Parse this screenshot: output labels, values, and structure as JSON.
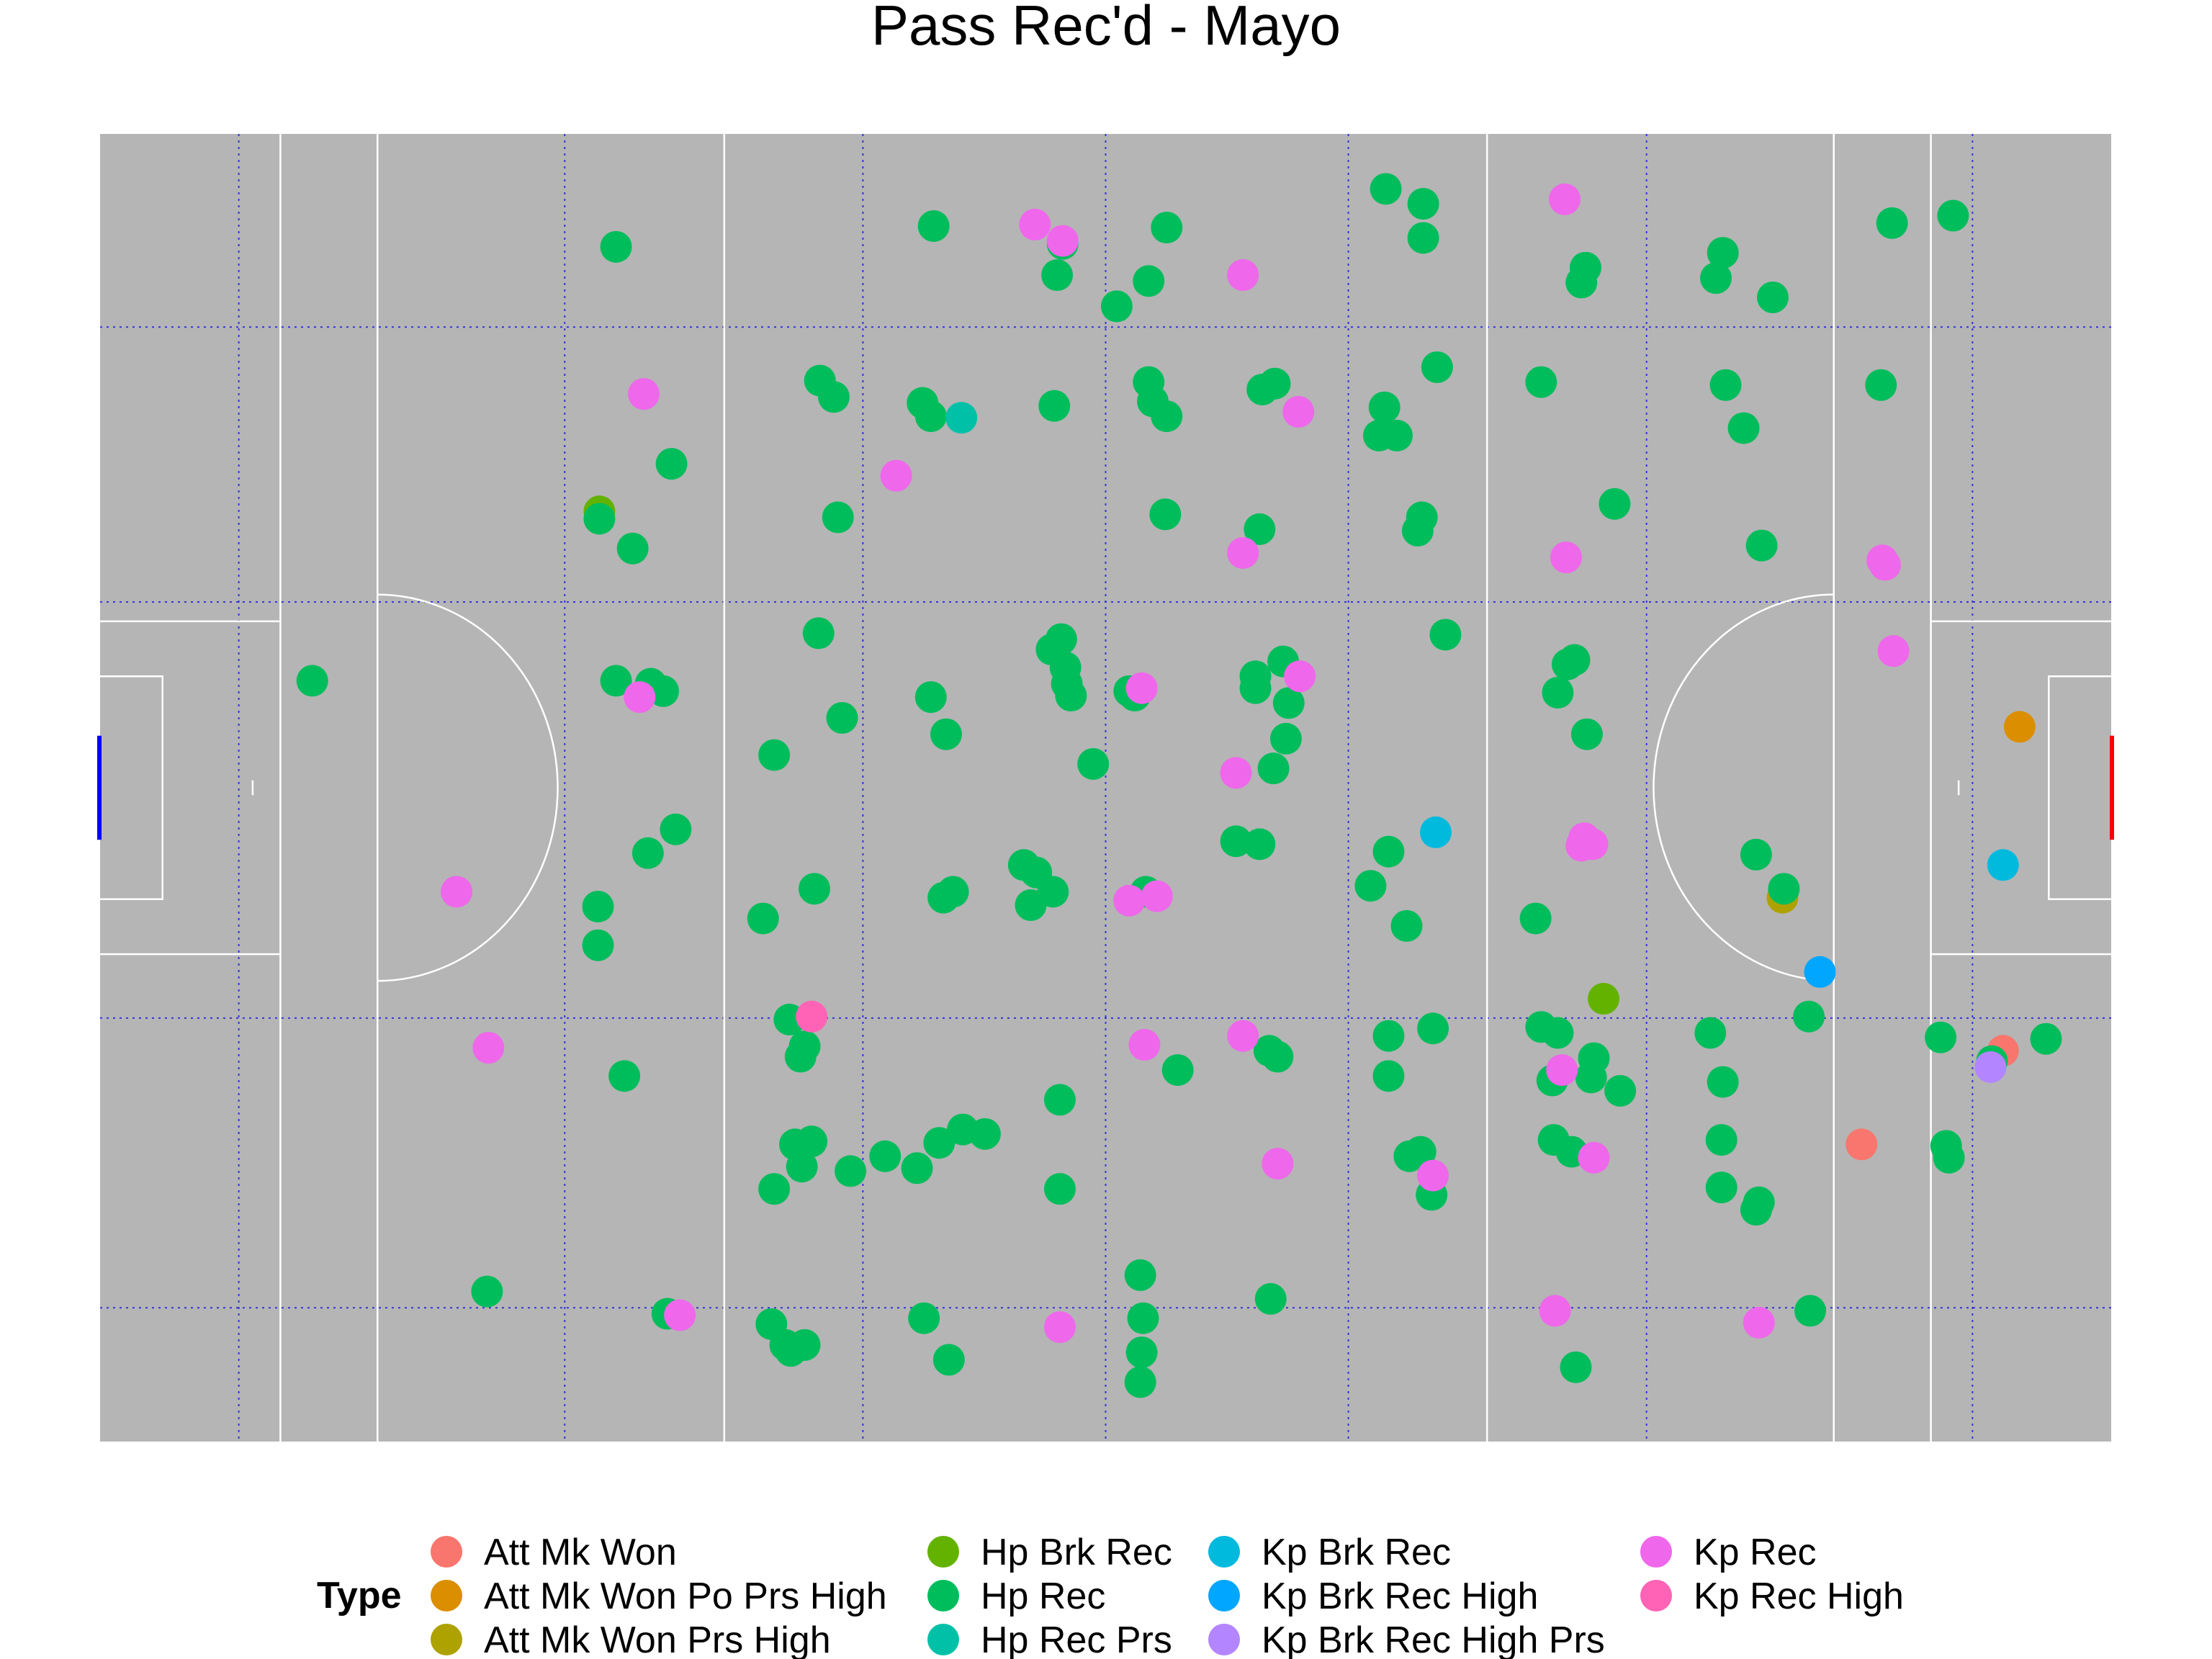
{
  "chart_data": {
    "type": "scatter",
    "title": "Pass Rec'd - Mayo",
    "xlim": [
      0,
      145
    ],
    "ylim": [
      0,
      88
    ],
    "grid": true,
    "legend": {
      "title": "Type",
      "position": "bottom",
      "entries": [
        {
          "name": "Att Mk Won",
          "color": "#F8766D"
        },
        {
          "name": "Att Mk Won Po Prs High",
          "color": "#DB8E00"
        },
        {
          "name": "Att Mk Won Prs High",
          "color": "#AEA200"
        },
        {
          "name": "Hp Brk Rec",
          "color": "#64B200"
        },
        {
          "name": "Hp Rec",
          "color": "#00BD5C"
        },
        {
          "name": "Hp Rec Prs",
          "color": "#00C1A7"
        },
        {
          "name": "Kp Brk Rec",
          "color": "#00BADE"
        },
        {
          "name": "Kp Brk Rec High",
          "color": "#00A6FF"
        },
        {
          "name": "Kp Brk Rec High Prs",
          "color": "#B385FF"
        },
        {
          "name": "Kp Rec",
          "color": "#EF67EB"
        },
        {
          "name": "Kp Rec High",
          "color": "#FF63B6"
        }
      ]
    },
    "series": [
      {
        "name": "Att Mk Won",
        "points": [
          [
            137.2,
            26.3
          ],
          [
            127.0,
            20.0
          ]
        ]
      },
      {
        "name": "Att Mk Won Po Prs High",
        "points": [
          [
            138.4,
            48.1
          ]
        ]
      },
      {
        "name": "Att Mk Won Prs High",
        "points": [
          [
            121.3,
            36.6
          ]
        ]
      },
      {
        "name": "Hp Brk Rec",
        "points": [
          [
            36.0,
            62.6
          ],
          [
            108.4,
            29.8
          ]
        ]
      },
      {
        "name": "Hp Rec",
        "points": [
          [
            37.2,
            80.4
          ],
          [
            60.1,
            81.8
          ],
          [
            69.4,
            80.6
          ],
          [
            69.0,
            78.5
          ],
          [
            76.9,
            81.7
          ],
          [
            75.6,
            78.1
          ],
          [
            73.3,
            76.4
          ],
          [
            92.7,
            84.3
          ],
          [
            95.4,
            83.3
          ],
          [
            95.4,
            81.0
          ],
          [
            107.1,
            79.0
          ],
          [
            106.8,
            78.0
          ],
          [
            117.0,
            80.0
          ],
          [
            116.5,
            78.3
          ],
          [
            120.6,
            77.0
          ],
          [
            129.2,
            82.0
          ],
          [
            133.6,
            82.5
          ],
          [
            51.9,
            71.4
          ],
          [
            52.9,
            70.3
          ],
          [
            59.3,
            69.9
          ],
          [
            59.9,
            69.0
          ],
          [
            68.8,
            69.7
          ],
          [
            75.6,
            71.3
          ],
          [
            75.9,
            70.0
          ],
          [
            76.9,
            69.0
          ],
          [
            83.8,
            70.8
          ],
          [
            84.7,
            71.2
          ],
          [
            92.6,
            69.6
          ],
          [
            92.2,
            67.7
          ],
          [
            93.5,
            67.7
          ],
          [
            96.4,
            72.3
          ],
          [
            103.9,
            71.3
          ],
          [
            117.2,
            71.1
          ],
          [
            118.5,
            68.2
          ],
          [
            128.4,
            71.1
          ],
          [
            41.2,
            65.8
          ],
          [
            36.0,
            62.1
          ],
          [
            38.4,
            60.1
          ],
          [
            53.2,
            62.2
          ],
          [
            76.8,
            62.4
          ],
          [
            83.6,
            61.4
          ],
          [
            95.3,
            62.2
          ],
          [
            95.0,
            61.3
          ],
          [
            109.2,
            63.1
          ],
          [
            119.8,
            60.3
          ],
          [
            51.8,
            54.4
          ],
          [
            37.2,
            51.2
          ],
          [
            39.7,
            51.0
          ],
          [
            40.6,
            50.5
          ],
          [
            15.3,
            51.2
          ],
          [
            59.9,
            50.1
          ],
          [
            61.0,
            47.6
          ],
          [
            68.6,
            53.3
          ],
          [
            69.3,
            54.0
          ],
          [
            69.6,
            52.1
          ],
          [
            69.7,
            51.0
          ],
          [
            70.0,
            50.2
          ],
          [
            74.2,
            50.5
          ],
          [
            74.6,
            50.2
          ],
          [
            83.3,
            51.5
          ],
          [
            83.3,
            50.7
          ],
          [
            85.3,
            52.5
          ],
          [
            85.7,
            49.7
          ],
          [
            85.5,
            47.3
          ],
          [
            84.6,
            45.3
          ],
          [
            97.0,
            54.3
          ],
          [
            105.8,
            52.3
          ],
          [
            106.3,
            52.6
          ],
          [
            105.1,
            50.4
          ],
          [
            107.2,
            47.6
          ],
          [
            53.5,
            48.7
          ],
          [
            48.6,
            46.2
          ],
          [
            71.6,
            45.6
          ],
          [
            41.5,
            41.2
          ],
          [
            39.5,
            39.6
          ],
          [
            66.6,
            38.8
          ],
          [
            67.5,
            38.3
          ],
          [
            68.7,
            37.0
          ],
          [
            51.5,
            37.2
          ],
          [
            60.8,
            36.6
          ],
          [
            61.5,
            37.0
          ],
          [
            67.1,
            36.1
          ],
          [
            47.8,
            35.2
          ],
          [
            81.9,
            40.4
          ],
          [
            83.6,
            40.2
          ],
          [
            92.9,
            39.7
          ],
          [
            91.6,
            37.4
          ],
          [
            75.4,
            37.0
          ],
          [
            35.9,
            36.0
          ],
          [
            35.9,
            33.4
          ],
          [
            94.2,
            34.7
          ],
          [
            103.5,
            35.2
          ],
          [
            119.4,
            39.5
          ],
          [
            121.4,
            37.2
          ],
          [
            136.4,
            25.6
          ],
          [
            140.3,
            27.1
          ],
          [
            49.7,
            28.4
          ],
          [
            50.8,
            26.6
          ],
          [
            50.5,
            25.9
          ],
          [
            37.8,
            24.6
          ],
          [
            69.2,
            23.0
          ],
          [
            77.7,
            25.0
          ],
          [
            84.3,
            26.3
          ],
          [
            84.9,
            25.9
          ],
          [
            92.9,
            27.3
          ],
          [
            96.1,
            27.8
          ],
          [
            92.9,
            24.6
          ],
          [
            103.9,
            27.9
          ],
          [
            105.1,
            27.5
          ],
          [
            107.7,
            25.8
          ],
          [
            107.5,
            24.5
          ],
          [
            104.7,
            24.3
          ],
          [
            109.6,
            23.6
          ],
          [
            116.1,
            27.5
          ],
          [
            117.0,
            24.2
          ],
          [
            123.2,
            28.6
          ],
          [
            132.7,
            27.2
          ],
          [
            50.1,
            20.0
          ],
          [
            51.3,
            20.2
          ],
          [
            50.6,
            18.5
          ],
          [
            48.6,
            17.0
          ],
          [
            54.1,
            18.2
          ],
          [
            56.6,
            19.2
          ],
          [
            58.9,
            18.4
          ],
          [
            60.5,
            20.1
          ],
          [
            62.2,
            21.0
          ],
          [
            63.8,
            20.7
          ],
          [
            69.2,
            17.0
          ],
          [
            94.4,
            19.2
          ],
          [
            95.2,
            19.5
          ],
          [
            96.0,
            16.6
          ],
          [
            104.8,
            20.3
          ],
          [
            106.1,
            19.5
          ],
          [
            116.9,
            20.3
          ],
          [
            116.9,
            17.1
          ],
          [
            119.6,
            16.1
          ],
          [
            119.4,
            15.6
          ],
          [
            133.1,
            19.9
          ],
          [
            133.3,
            19.1
          ],
          [
            27.9,
            10.1
          ],
          [
            40.9,
            8.6
          ],
          [
            48.4,
            7.9
          ],
          [
            49.4,
            6.5
          ],
          [
            50.8,
            6.5
          ],
          [
            49.8,
            6.1
          ],
          [
            59.4,
            8.3
          ],
          [
            61.2,
            5.5
          ],
          [
            75.0,
            11.2
          ],
          [
            75.2,
            8.3
          ],
          [
            75.1,
            6.0
          ],
          [
            75.0,
            4.0
          ],
          [
            84.4,
            9.6
          ],
          [
            106.4,
            5.0
          ],
          [
            123.3,
            8.8
          ]
        ]
      },
      {
        "name": "Hp Rec Prs",
        "points": [
          [
            62.1,
            68.9
          ]
        ]
      },
      {
        "name": "Kp Brk Rec",
        "points": [
          [
            96.3,
            41.0
          ],
          [
            137.2,
            38.8
          ]
        ]
      },
      {
        "name": "Kp Brk Rec High",
        "points": [
          [
            124.0,
            31.6
          ]
        ]
      },
      {
        "name": "Kp Brk Rec High Prs",
        "points": [
          [
            136.3,
            25.2
          ]
        ]
      },
      {
        "name": "Kp Rec",
        "points": [
          [
            67.4,
            81.9
          ],
          [
            69.4,
            80.8
          ],
          [
            82.4,
            78.5
          ],
          [
            105.6,
            83.6
          ],
          [
            39.2,
            70.5
          ],
          [
            57.4,
            65.0
          ],
          [
            82.4,
            59.8
          ],
          [
            86.4,
            69.3
          ],
          [
            105.7,
            59.5
          ],
          [
            128.5,
            59.3
          ],
          [
            128.7,
            59.0
          ],
          [
            129.3,
            53.2
          ],
          [
            38.9,
            50.1
          ],
          [
            75.1,
            50.7
          ],
          [
            81.9,
            45.0
          ],
          [
            86.5,
            51.5
          ],
          [
            107.0,
            40.6
          ],
          [
            107.6,
            40.2
          ],
          [
            106.8,
            40.1
          ],
          [
            25.7,
            37.0
          ],
          [
            74.2,
            36.4
          ],
          [
            76.2,
            36.7
          ],
          [
            28.0,
            26.5
          ],
          [
            75.3,
            26.7
          ],
          [
            82.4,
            27.3
          ],
          [
            105.4,
            25.0
          ],
          [
            84.9,
            18.7
          ],
          [
            96.1,
            17.9
          ],
          [
            107.7,
            19.1
          ],
          [
            41.8,
            8.5
          ],
          [
            69.2,
            7.7
          ],
          [
            104.9,
            8.8
          ],
          [
            119.6,
            8.0
          ]
        ]
      },
      {
        "name": "Kp Rec High",
        "points": [
          [
            51.3,
            28.6
          ]
        ]
      }
    ]
  }
}
